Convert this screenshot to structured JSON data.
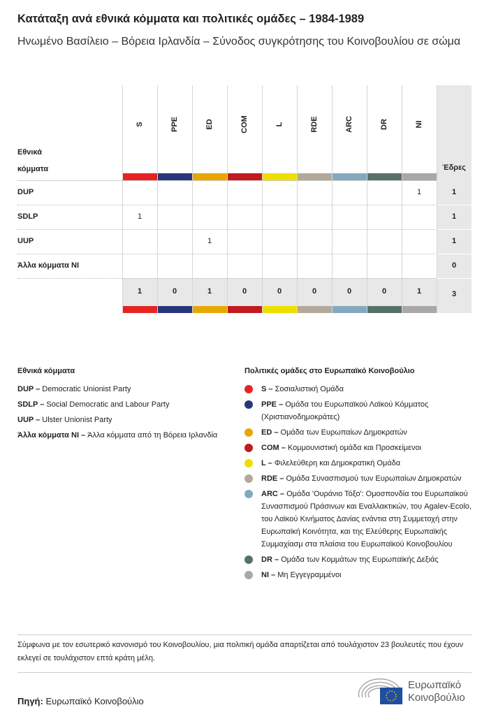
{
  "title": "Κατάταξη ανά εθνικά κόμματα και πολιτικές ομάδες – 1984-1989",
  "subtitle": "Ηνωμένο Βασίλειο – Βόρεια Ιρλανδία – Σύνοδος συγκρότησης του Κοινοβουλίου σε σώμα",
  "chart_data": {
    "type": "table",
    "row_header": "Εθνικά κόμματα",
    "seats_header": "Έδρες",
    "groups": [
      "S",
      "PPE",
      "ED",
      "COM",
      "L",
      "RDE",
      "ARC",
      "DR",
      "NI"
    ],
    "group_colors": [
      "#e52421",
      "#283779",
      "#e6a800",
      "#c11b1f",
      "#ede000",
      "#b3a99b",
      "#84a9bf",
      "#587167",
      "#a8a8a8"
    ],
    "rows": [
      {
        "party": "DUP",
        "values": [
          null,
          null,
          null,
          null,
          null,
          null,
          null,
          null,
          1
        ],
        "seats": 1
      },
      {
        "party": "SDLP",
        "values": [
          1,
          null,
          null,
          null,
          null,
          null,
          null,
          null,
          null
        ],
        "seats": 1
      },
      {
        "party": "UUP",
        "values": [
          null,
          null,
          1,
          null,
          null,
          null,
          null,
          null,
          null
        ],
        "seats": 1
      },
      {
        "party": "Άλλα κόμματα NI",
        "values": [
          null,
          null,
          null,
          null,
          null,
          null,
          null,
          null,
          null
        ],
        "seats": 0
      }
    ],
    "totals": [
      1,
      0,
      1,
      0,
      0,
      0,
      0,
      0,
      1
    ],
    "total_seats": 3
  },
  "legend_parties": {
    "title": "Εθνικά κόμματα",
    "items": [
      {
        "abbr": "DUP –",
        "name": "Democratic Unionist Party"
      },
      {
        "abbr": "SDLP –",
        "name": "Social Democratic and Labour Party"
      },
      {
        "abbr": "UUP –",
        "name": "Ulster Unionist Party"
      },
      {
        "abbr": "Άλλα κόμματα NI –",
        "name": "Άλλα κόμματα από τη Βόρεια Ιρλανδία"
      }
    ]
  },
  "legend_groups": {
    "title": "Πολιτικές ομάδες στο Ευρωπαϊκό Κοινοβούλιο",
    "items": [
      {
        "abbr": "S –",
        "name": "Σοσιαλιστική Ομάδα"
      },
      {
        "abbr": "PPE –",
        "name": "Ομάδα του Ευρωπαϊκού Λαϊκού Κόμματος (Χριστιανοδημοκράτες)"
      },
      {
        "abbr": "ED –",
        "name": "Ομάδα των Ευρωπαίων Δημοκρατών"
      },
      {
        "abbr": "COM –",
        "name": "Κομμουνιστική ομάδα και Προσκείμενοι"
      },
      {
        "abbr": "L –",
        "name": "Φιλελεύθερη και Δημοκρατική Ομάδα"
      },
      {
        "abbr": "RDE –",
        "name": "Ομάδα Συνασπισμού των Ευρωπαίων Δημοκρατών"
      },
      {
        "abbr": "ARC –",
        "name": "Ομάδα 'Ουράνιο Τόξο': Ομοσπονδία του Ευρωπαϊκού Συνασπισμού Πράσινων και Εναλλακτικών, του Agalev-Ecolo, του Λαϊκού Κινήματος Δανίας ενάντια στη Συμμετοχή στην Ευρωπαϊκή Κοινότητα, και της Ελεύθερης Ευρωπαϊκής Συμμαχίασμ στα πλαίσια του Ευρωπαϊκού Κοινοβουλίου"
      },
      {
        "abbr": "DR –",
        "name": "Ομάδα των Κομμάτων της Ευρωπαϊκής Δεξιάς"
      },
      {
        "abbr": "NI –",
        "name": "Μη Εγγεγραμμένοι"
      }
    ]
  },
  "note": "Σύμφωνα με τον εσωτερικό κανονισμό του Κοινοβουλίου, μια πολιτική ομάδα απαρτίζεται από τουλάχιστον 23 βουλευτές που έχουν εκλεγεί σε τουλάχιστον επτά κράτη μέλη.",
  "source_label": "Πηγή:",
  "source": "Ευρωπαϊκό Κοινοβούλιο",
  "logo_text": "Ευρωπαϊκό Κοινοβούλιο"
}
